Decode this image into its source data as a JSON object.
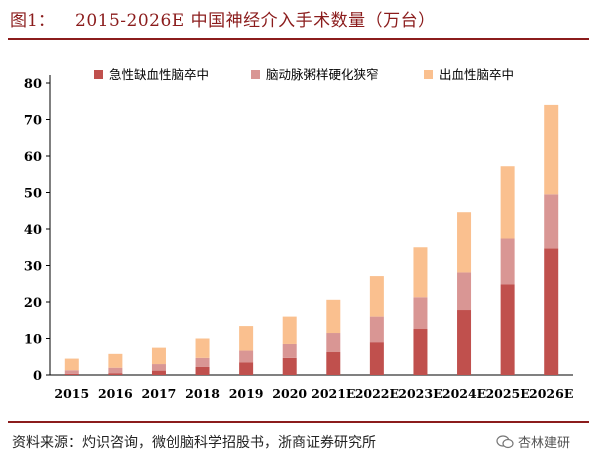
{
  "header": {
    "figure_label": "图1：",
    "title": "2015-2026E 中国神经介入手术数量（万台）"
  },
  "footer": {
    "source": "资料来源：灼识咨询，微创脑科学招股书，浙商证券研究所",
    "watermark": "杏林建研"
  },
  "colors": {
    "accent": "#8b1c1c",
    "series_ischemic": "#c0504d",
    "series_atherosclerosis": "#d99694",
    "series_hemorrhagic": "#fac08f"
  },
  "chart_data": {
    "type": "bar",
    "stacked": true,
    "title": "",
    "xlabel": "",
    "ylabel": "",
    "categories": [
      "2015",
      "2016",
      "2017",
      "2018",
      "2019",
      "2020",
      "2021E",
      "2022E",
      "2023E",
      "2024E",
      "2025E",
      "2026E"
    ],
    "series": [
      {
        "name": "急性缺血性脑卒中",
        "color": "#c0504d",
        "values": [
          0.3,
          0.5,
          1.2,
          2.2,
          3.5,
          4.7,
          6.3,
          9.0,
          12.6,
          17.8,
          24.8,
          34.7
        ]
      },
      {
        "name": "脑动脉粥样硬化狭窄",
        "color": "#d99694",
        "values": [
          1.0,
          1.5,
          1.8,
          2.5,
          3.2,
          3.8,
          5.2,
          7.0,
          8.7,
          10.3,
          12.6,
          14.8
        ]
      },
      {
        "name": "出血性脑卒中",
        "color": "#fac08f",
        "values": [
          3.2,
          3.8,
          4.5,
          5.3,
          6.7,
          7.5,
          9.1,
          11.1,
          13.7,
          16.5,
          19.8,
          24.5
        ]
      }
    ],
    "ylim": [
      0,
      80
    ],
    "yticks": [
      0,
      10,
      20,
      30,
      40,
      50,
      60,
      70,
      80
    ],
    "grid": false,
    "legend": "top"
  }
}
